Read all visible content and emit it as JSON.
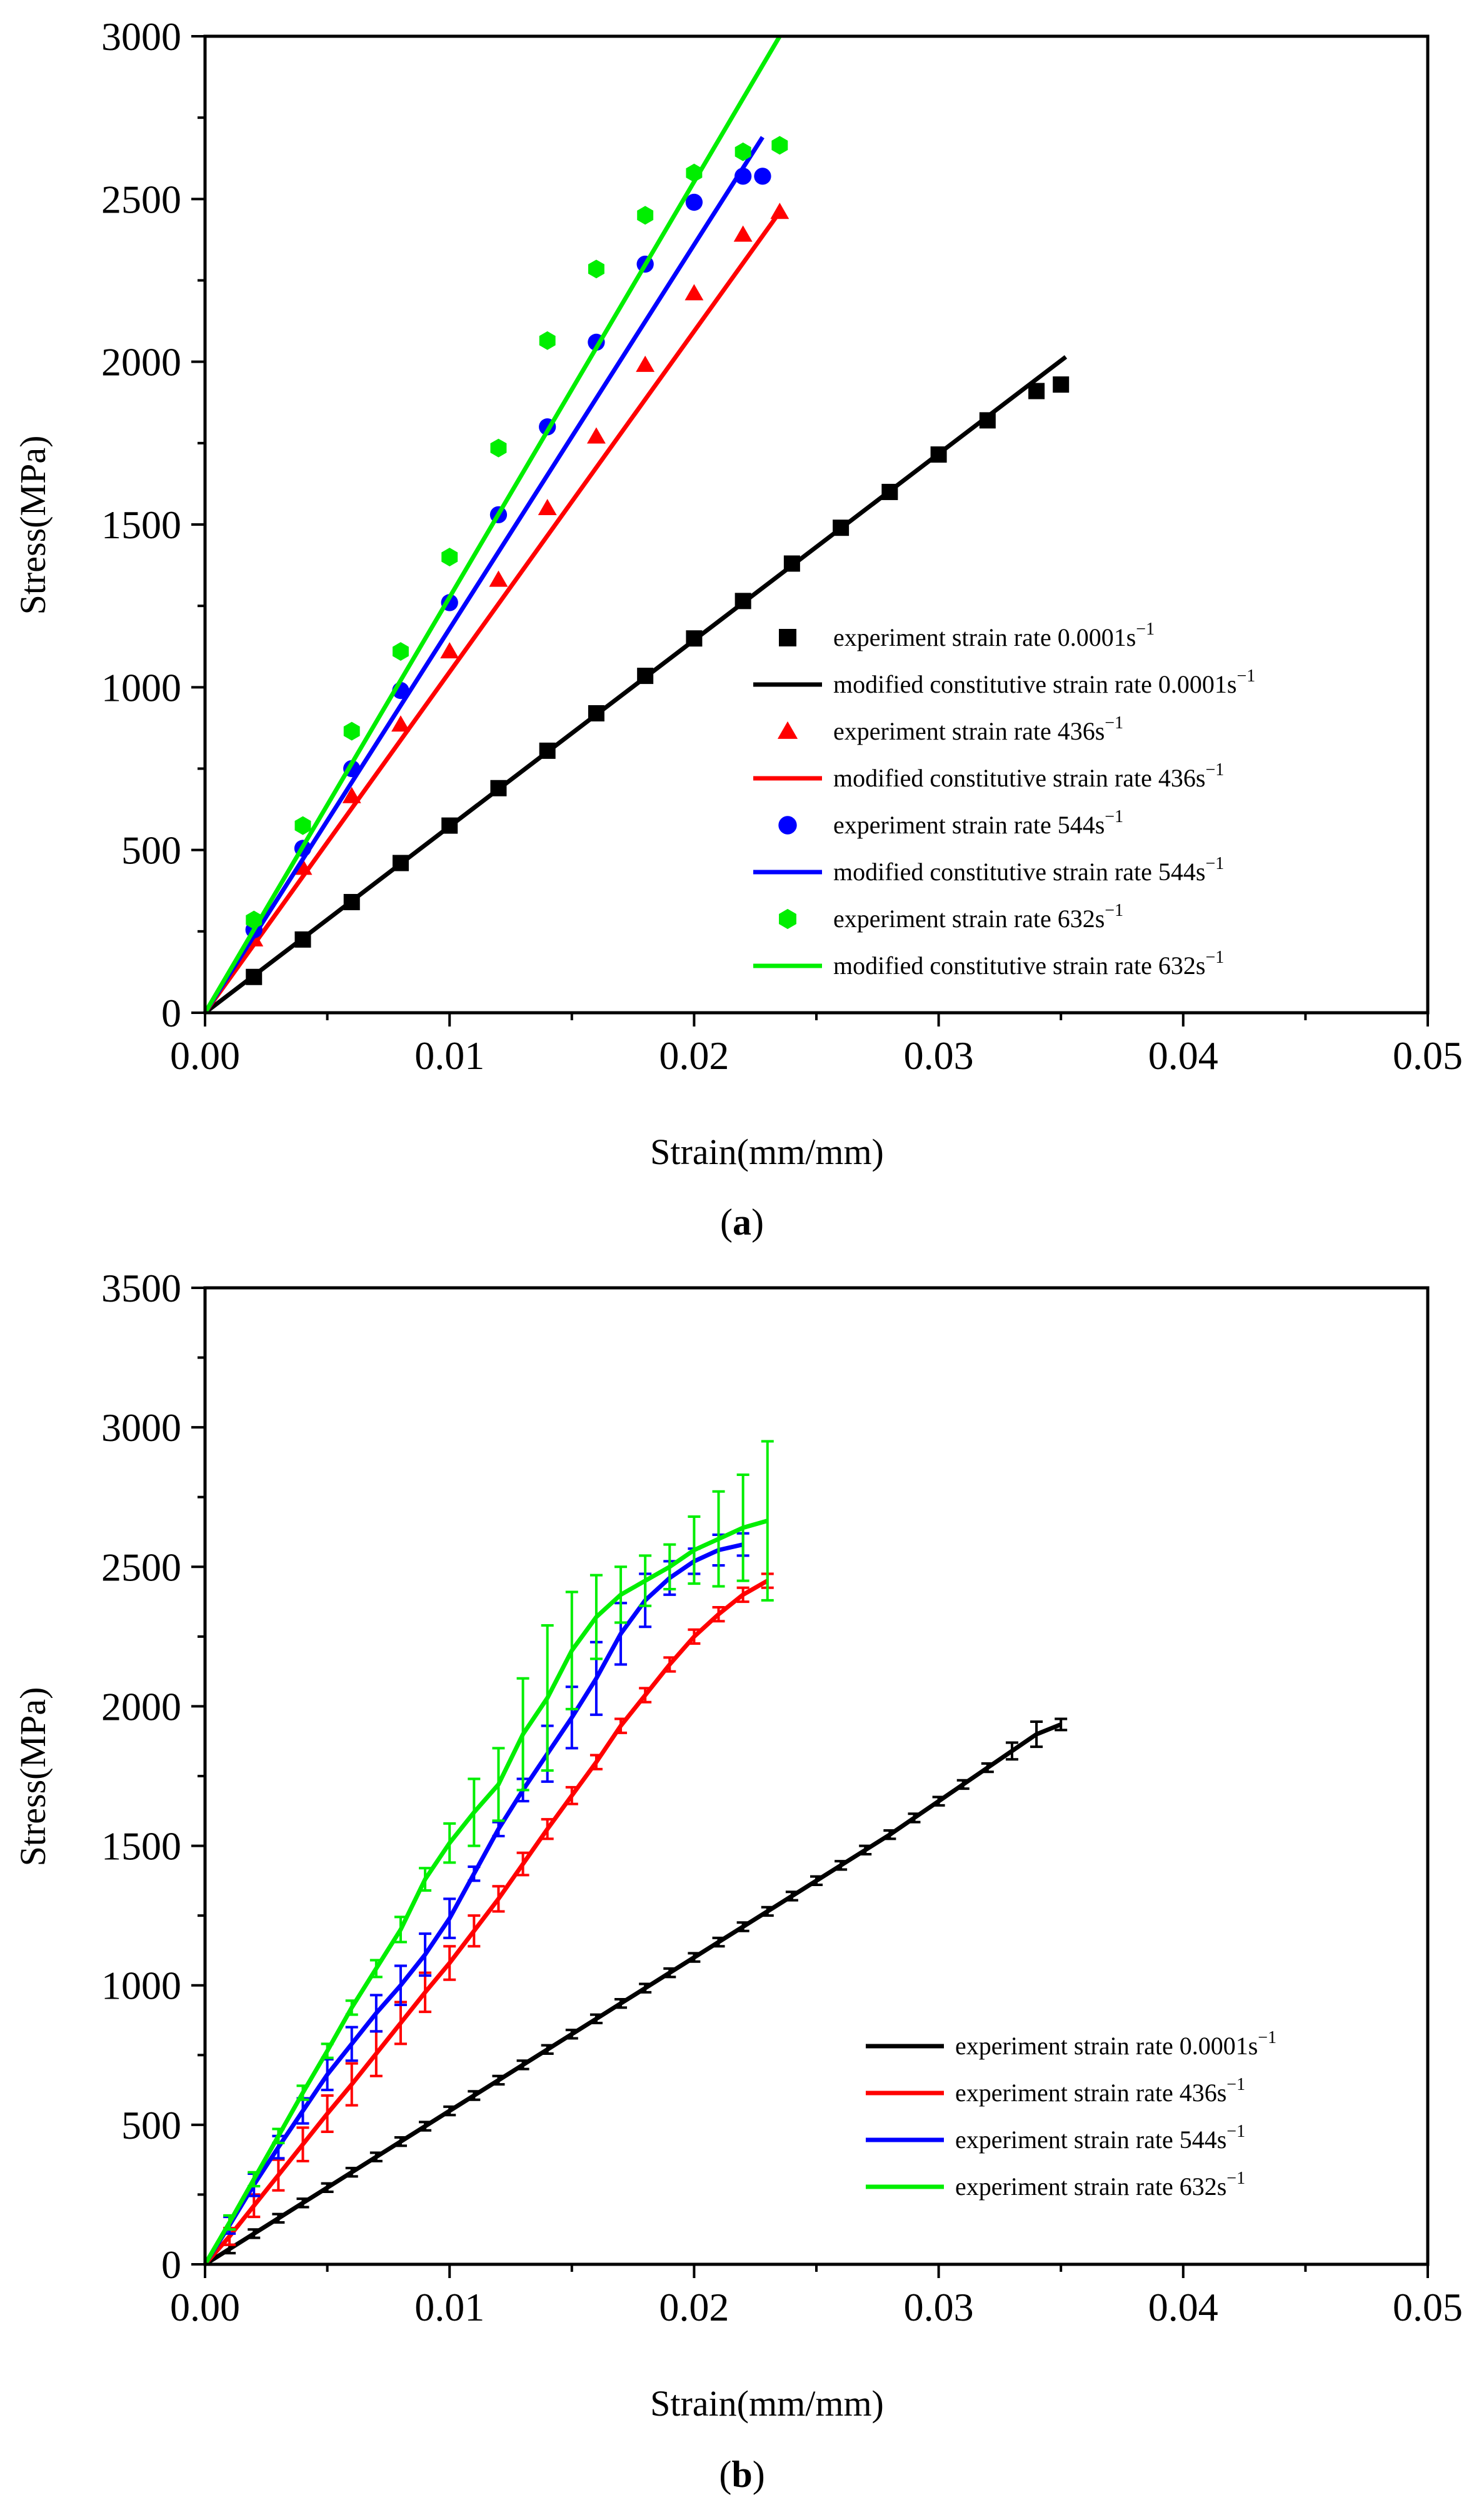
{
  "chart_data": [
    {
      "id": "a",
      "type": "scatter+line",
      "caption": "a",
      "xlabel": "Strain(mm/mm)",
      "ylabel": "Stress(MPa)",
      "xlim": [
        0,
        0.05
      ],
      "ylim": [
        0,
        3000
      ],
      "xticks": [
        0.0,
        0.01,
        0.02,
        0.03,
        0.04,
        0.05
      ],
      "xtick_labels": [
        "0.00",
        "0.01",
        "0.02",
        "0.03",
        "0.04",
        "0.05"
      ],
      "yticks": [
        0,
        500,
        1000,
        1500,
        2000,
        2500,
        3000
      ],
      "ytick_labels": [
        "0",
        "500",
        "1000",
        "1500",
        "2000",
        "2500",
        "3000"
      ],
      "legend_position": "lower-right",
      "series": [
        {
          "name": "experiment strain rate 0.0001s",
          "sup": "−1",
          "kind": "marker",
          "marker": "square",
          "color": "#000000",
          "x": [
            0.002,
            0.004,
            0.006,
            0.008,
            0.01,
            0.012,
            0.014,
            0.016,
            0.018,
            0.02,
            0.022,
            0.024,
            0.026,
            0.028,
            0.03,
            0.032,
            0.034,
            0.035
          ],
          "y": [
            110,
            225,
            340,
            460,
            575,
            690,
            805,
            920,
            1035,
            1150,
            1265,
            1380,
            1490,
            1600,
            1715,
            1820,
            1910,
            1930
          ]
        },
        {
          "name": "modified constitutive strain rate 0.0001s",
          "sup": "−1",
          "kind": "line",
          "color": "#000000",
          "x": [
            0,
            0.0352
          ],
          "y": [
            0,
            2015
          ]
        },
        {
          "name": "experiment strain rate 436s",
          "sup": "−1",
          "kind": "marker",
          "marker": "triangle",
          "color": "#ff0000",
          "x": [
            0.002,
            0.004,
            0.006,
            0.008,
            0.01,
            0.012,
            0.014,
            0.016,
            0.018,
            0.02,
            0.022,
            0.0235
          ],
          "y": [
            225,
            445,
            665,
            885,
            1110,
            1330,
            1550,
            1770,
            1990,
            2210,
            2390,
            2460
          ]
        },
        {
          "name": "modified constitutive strain rate 436s",
          "sup": "−1",
          "kind": "line",
          "color": "#ff0000",
          "x": [
            0,
            0.0235
          ],
          "y": [
            0,
            2460
          ]
        },
        {
          "name": "experiment strain rate 544s",
          "sup": "−1",
          "kind": "marker",
          "marker": "circle",
          "color": "#0000ff",
          "x": [
            0.002,
            0.004,
            0.006,
            0.008,
            0.01,
            0.012,
            0.014,
            0.016,
            0.018,
            0.02,
            0.022,
            0.0228
          ],
          "y": [
            255,
            505,
            750,
            990,
            1260,
            1530,
            1800,
            2060,
            2300,
            2490,
            2570,
            2570
          ]
        },
        {
          "name": "modified constitutive strain rate 544s",
          "sup": "−1",
          "kind": "line",
          "color": "#0000ff",
          "x": [
            0,
            0.0228
          ],
          "y": [
            0,
            2690
          ]
        },
        {
          "name": "experiment strain rate 632s",
          "sup": "−1",
          "kind": "marker",
          "marker": "hexagon",
          "color": "#00ee00",
          "x": [
            0.002,
            0.004,
            0.006,
            0.008,
            0.01,
            0.012,
            0.014,
            0.016,
            0.018,
            0.02,
            0.022,
            0.0235
          ],
          "y": [
            285,
            575,
            865,
            1110,
            1400,
            1735,
            2065,
            2285,
            2450,
            2580,
            2645,
            2665
          ]
        },
        {
          "name": "modified constitutive strain rate 632s",
          "sup": "−1",
          "kind": "line",
          "color": "#00ee00",
          "x": [
            0,
            0.0235
          ],
          "y": [
            0,
            3000
          ]
        }
      ]
    },
    {
      "id": "b",
      "type": "line+errorbar",
      "caption": "b",
      "xlabel": "Strain(mm/mm)",
      "ylabel": "Stress(MPa)",
      "xlim": [
        0,
        0.05
      ],
      "ylim": [
        0,
        3500
      ],
      "xticks": [
        0.0,
        0.01,
        0.02,
        0.03,
        0.04,
        0.05
      ],
      "xtick_labels": [
        "0.00",
        "0.01",
        "0.02",
        "0.03",
        "0.04",
        "0.05"
      ],
      "yticks": [
        0,
        500,
        1000,
        1500,
        2000,
        2500,
        3000,
        3500
      ],
      "ytick_labels": [
        "0",
        "500",
        "1000",
        "1500",
        "2000",
        "2500",
        "3000",
        "3500"
      ],
      "legend_position": "lower-right",
      "series": [
        {
          "name": "experiment strain rate 0.0001s",
          "sup": "−1",
          "color": "#000000",
          "x": [
            0.001,
            0.002,
            0.003,
            0.004,
            0.005,
            0.006,
            0.007,
            0.008,
            0.009,
            0.01,
            0.011,
            0.012,
            0.013,
            0.014,
            0.015,
            0.016,
            0.017,
            0.018,
            0.019,
            0.02,
            0.021,
            0.022,
            0.023,
            0.024,
            0.025,
            0.026,
            0.027,
            0.028,
            0.029,
            0.03,
            0.031,
            0.032,
            0.033,
            0.034,
            0.035
          ],
          "y": [
            55,
            110,
            165,
            220,
            275,
            330,
            385,
            440,
            495,
            550,
            605,
            660,
            715,
            770,
            825,
            880,
            935,
            990,
            1045,
            1100,
            1155,
            1210,
            1265,
            1320,
            1375,
            1430,
            1485,
            1540,
            1600,
            1660,
            1720,
            1780,
            1840,
            1900,
            1935
          ],
          "err": [
            15,
            15,
            15,
            15,
            15,
            15,
            15,
            15,
            15,
            15,
            15,
            15,
            15,
            15,
            15,
            15,
            15,
            15,
            15,
            15,
            15,
            15,
            15,
            15,
            15,
            15,
            15,
            15,
            15,
            15,
            15,
            15,
            30,
            45,
            20
          ]
        },
        {
          "name": "experiment strain rate 436s",
          "sup": "−1",
          "color": "#ff0000",
          "x": [
            0.001,
            0.002,
            0.003,
            0.004,
            0.005,
            0.006,
            0.007,
            0.008,
            0.009,
            0.01,
            0.011,
            0.012,
            0.013,
            0.014,
            0.015,
            0.016,
            0.017,
            0.018,
            0.019,
            0.02,
            0.021,
            0.022,
            0.023
          ],
          "y": [
            100,
            210,
            320,
            430,
            540,
            645,
            755,
            865,
            975,
            1080,
            1195,
            1310,
            1435,
            1560,
            1680,
            1800,
            1930,
            2040,
            2150,
            2250,
            2330,
            2400,
            2450
          ],
          "err": [
            30,
            40,
            55,
            60,
            65,
            75,
            80,
            75,
            70,
            60,
            55,
            45,
            40,
            35,
            30,
            25,
            25,
            25,
            25,
            25,
            25,
            25,
            25
          ]
        },
        {
          "name": "experiment strain rate 544s",
          "sup": "−1",
          "color": "#0000ff",
          "x": [
            0.001,
            0.002,
            0.003,
            0.004,
            0.005,
            0.006,
            0.007,
            0.008,
            0.009,
            0.01,
            0.011,
            0.012,
            0.013,
            0.014,
            0.015,
            0.016,
            0.017,
            0.018,
            0.019,
            0.02,
            0.021,
            0.022
          ],
          "y": [
            140,
            285,
            420,
            550,
            680,
            790,
            900,
            1000,
            1110,
            1240,
            1400,
            1560,
            1700,
            1830,
            1960,
            2100,
            2260,
            2380,
            2460,
            2520,
            2560,
            2580
          ],
          "err": [
            30,
            40,
            40,
            45,
            55,
            60,
            65,
            70,
            75,
            70,
            25,
            25,
            40,
            100,
            110,
            130,
            110,
            95,
            60,
            45,
            55,
            40
          ]
        },
        {
          "name": "experiment strain rate 632s",
          "sup": "−1",
          "color": "#00ee00",
          "x": [
            0.001,
            0.002,
            0.003,
            0.004,
            0.005,
            0.006,
            0.007,
            0.008,
            0.009,
            0.01,
            0.011,
            0.012,
            0.013,
            0.014,
            0.015,
            0.016,
            0.017,
            0.018,
            0.019,
            0.02,
            0.021,
            0.022,
            0.023
          ],
          "y": [
            150,
            305,
            460,
            615,
            765,
            920,
            1060,
            1200,
            1380,
            1510,
            1620,
            1720,
            1900,
            2030,
            2200,
            2320,
            2400,
            2450,
            2500,
            2560,
            2600,
            2640,
            2665
          ],
          "err": [
            25,
            25,
            25,
            25,
            25,
            25,
            30,
            45,
            40,
            70,
            120,
            130,
            200,
            260,
            210,
            150,
            100,
            90,
            80,
            120,
            170,
            190,
            285
          ]
        }
      ]
    }
  ]
}
